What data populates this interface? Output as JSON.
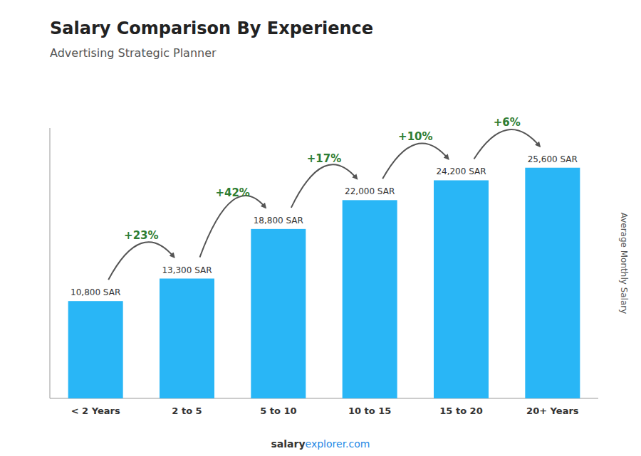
{
  "chart_data": {
    "type": "bar",
    "title": "Salary Comparison By Experience",
    "subtitle": "Advertising Strategic Planner",
    "y_label": "Average Monthly Salary",
    "categories": [
      "< 2 Years",
      "2 to 5",
      "5 to 10",
      "10 to 15",
      "15 to 20",
      "20+ Years"
    ],
    "values": [
      10800,
      13300,
      18800,
      22000,
      24200,
      25600
    ],
    "value_labels": [
      "10,800 SAR",
      "13,300 SAR",
      "18,800 SAR",
      "22,000 SAR",
      "24,200 SAR",
      "25,600 SAR"
    ],
    "data_labels": true,
    "annotations": [
      null,
      "+23%",
      "+42%",
      "+17%",
      "+10%",
      "+6%"
    ],
    "footer": [
      "salary",
      "explorer.com"
    ],
    "color": "#29b6f6",
    "ylim": [
      0,
      30000
    ],
    "grid": false,
    "tick_labels": false
  }
}
